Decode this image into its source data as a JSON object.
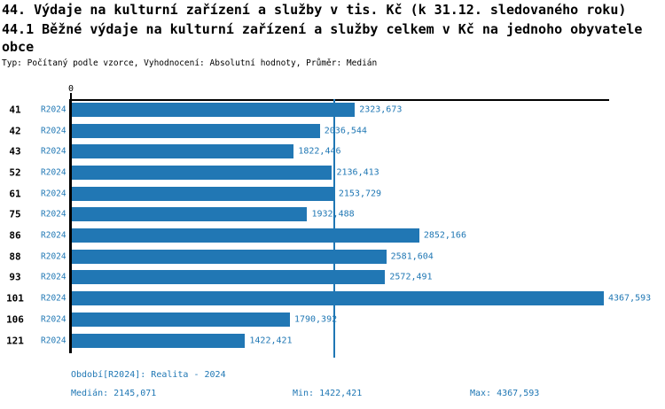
{
  "header": {
    "title_line1": "44. Výdaje na kulturní zařízení a služby v tis. Kč (k 31.12. sledovaného roku)",
    "title_line2": "44.1 Běžné výdaje na kulturní zařízení a služby celkem v Kč na jednoho obyvatele",
    "title_line3": "obce",
    "subtitle": "Typ: Počítaný podle vzorce, Vyhodnocení: Absolutní hodnoty, Průměr: Medián"
  },
  "chart_data": {
    "type": "bar",
    "orientation": "horizontal",
    "categories": [
      "41",
      "42",
      "43",
      "52",
      "61",
      "75",
      "86",
      "88",
      "93",
      "101",
      "106",
      "121"
    ],
    "series": [
      {
        "name": "R2024",
        "values": [
          2323.673,
          2036.544,
          1822.446,
          2136.413,
          2153.729,
          1932.488,
          2852.166,
          2581.604,
          2572.491,
          4367.593,
          1790.392,
          1422.421
        ],
        "value_labels": [
          "2323,673",
          "2036,544",
          "1822,446",
          "2136,413",
          "2153,729",
          "1932,488",
          "2852,166",
          "2581,604",
          "2572,491",
          "4367,593",
          "1790,392",
          "1422,421"
        ]
      }
    ],
    "x_axis": {
      "tick_labels": [
        "0"
      ],
      "xlim": [
        0,
        4400
      ],
      "grid": false
    },
    "median_value": 2145.071,
    "statistics": {
      "median": "2145,071",
      "min": "1422,421",
      "max": "4367,593"
    },
    "colors": {
      "bar": "#2177b4",
      "median_line": "#1f77b4",
      "label_text": "#1f77b4",
      "axis": "#000000"
    },
    "legend": {
      "visible": false
    }
  },
  "footer": {
    "period_label": "Období[R2024]: Realita - 2024",
    "median_label": "Medián: 2145,071",
    "min_label": "Min: 1422,421",
    "max_label": "Max: 4367,593"
  }
}
